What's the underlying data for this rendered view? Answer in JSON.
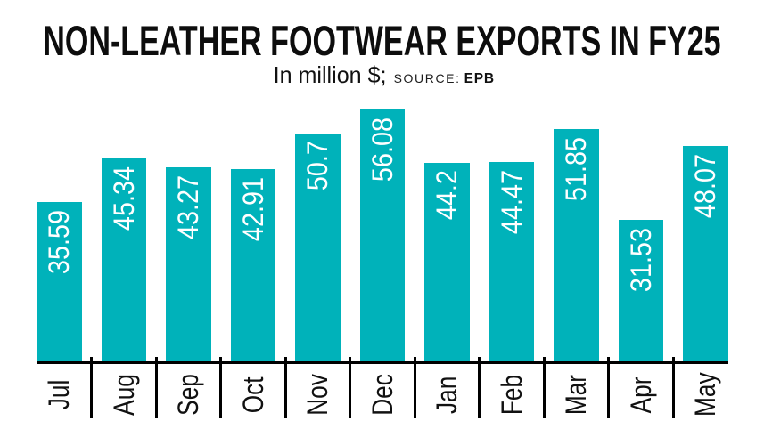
{
  "chart_data": {
    "type": "bar",
    "title": "NON-LEATHER FOOTWEAR EXPORTS IN FY25",
    "unit_label": "In million $;",
    "source_label": "SOURCE:",
    "source_value": "EPB",
    "categories": [
      "Jul",
      "Aug",
      "Sep",
      "Oct",
      "Nov",
      "Dec",
      "Jan",
      "Feb",
      "Mar",
      "Apr",
      "May"
    ],
    "values": [
      35.59,
      45.34,
      43.27,
      42.91,
      50.7,
      56.08,
      44.2,
      44.47,
      51.85,
      31.53,
      48.07
    ],
    "value_labels": [
      "35.59",
      "45.34",
      "43.27",
      "42.91",
      "50.7",
      "56.08",
      "44.2",
      "44.47",
      "51.85",
      "31.53",
      "48.07"
    ],
    "xlabel": "",
    "ylabel": "",
    "ylim": [
      0,
      56.08
    ],
    "grid": false,
    "legend": false,
    "bar_color": "#00b2ba",
    "value_label_color": "#ffffff",
    "axis_color": "#000000",
    "title_color": "#0d0d0d",
    "bar_label_rotation": -90,
    "x_tick_label_rotation": -90
  }
}
